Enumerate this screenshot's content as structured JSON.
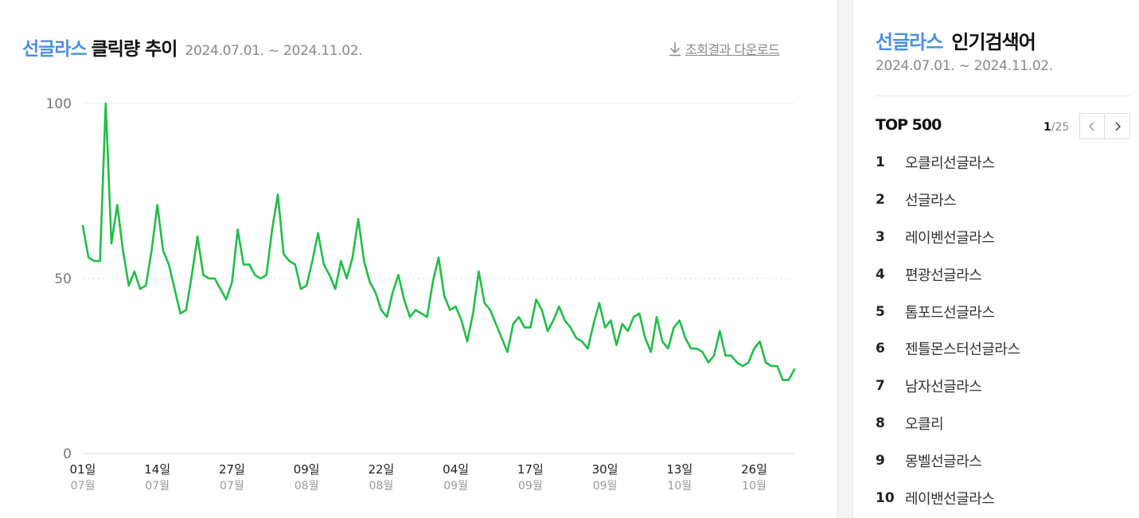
{
  "header": {
    "keyword": "선글라스",
    "title_rest": "클릭량 추이",
    "period": "2024.07.01. ~ 2024.11.02.",
    "download_label": "조회결과 다운로드",
    "download_icon": "download-arrow-icon"
  },
  "chart_data": {
    "type": "line",
    "series_color": "#1fbf45",
    "ylim": [
      0,
      100
    ],
    "yticks": [
      "0",
      "50",
      "100"
    ],
    "grid": true,
    "xtick_days": [
      "01일",
      "14일",
      "27일",
      "09일",
      "22일",
      "04일",
      "17일",
      "30일",
      "13일",
      "26일"
    ],
    "xtick_months": [
      "07월",
      "07월",
      "07월",
      "08월",
      "08월",
      "09월",
      "09월",
      "09월",
      "10월",
      "10월"
    ],
    "series": [
      {
        "values": [
          65,
          56,
          55,
          55,
          100,
          60,
          71,
          58,
          48,
          52,
          47,
          48,
          58,
          71,
          58,
          54,
          47,
          40,
          41,
          51,
          62,
          51,
          50,
          50,
          47,
          44,
          49,
          64,
          54,
          54,
          51,
          50,
          51,
          64,
          74,
          57,
          55,
          54,
          47,
          48,
          55,
          63,
          54,
          51,
          47,
          55,
          50,
          56,
          67,
          55,
          49,
          46,
          41,
          39,
          46,
          51,
          44,
          39,
          41,
          40,
          39,
          49,
          56,
          45,
          41,
          42,
          38,
          32,
          40,
          52,
          43,
          41,
          37,
          33,
          29,
          37,
          39,
          36,
          36,
          44,
          41,
          35,
          38,
          42,
          38,
          36,
          33,
          32,
          30,
          37,
          43,
          36,
          38,
          31,
          37,
          35,
          39,
          40,
          33,
          29,
          39,
          32,
          30,
          36,
          38,
          33,
          30,
          30,
          29,
          26,
          28,
          35,
          28,
          28,
          26,
          25,
          26,
          30,
          32,
          26,
          25,
          25,
          21,
          21,
          24
        ]
      }
    ]
  },
  "sidebar": {
    "keyword": "선글라스",
    "title_rest": "인기검색어",
    "period": "2024.07.01. ~ 2024.11.02.",
    "top_label": "TOP 500",
    "page_current": "1",
    "page_total": "/25",
    "prev_icon": "chevron-left-icon",
    "next_icon": "chevron-right-icon",
    "rankings": [
      {
        "rank": "1",
        "keyword": "오클리선글라스"
      },
      {
        "rank": "2",
        "keyword": "선글라스"
      },
      {
        "rank": "3",
        "keyword": "레이벤선글라스"
      },
      {
        "rank": "4",
        "keyword": "편광선글라스"
      },
      {
        "rank": "5",
        "keyword": "톰포드선글라스"
      },
      {
        "rank": "6",
        "keyword": "젠틀몬스터선글라스"
      },
      {
        "rank": "7",
        "keyword": "남자선글라스"
      },
      {
        "rank": "8",
        "keyword": "오클리"
      },
      {
        "rank": "9",
        "keyword": "몽벨선글라스"
      },
      {
        "rank": "10",
        "keyword": "레이밴선글라스"
      }
    ]
  }
}
